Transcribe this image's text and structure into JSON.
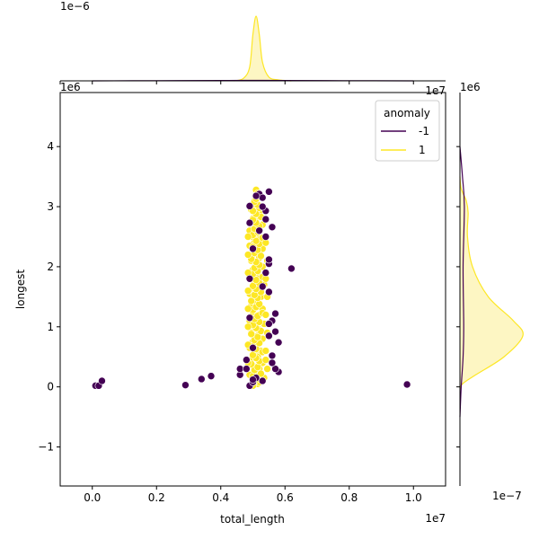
{
  "chart_data": {
    "type": "scatter",
    "xlabel": "total_length",
    "ylabel": "longest",
    "x_offset_label": "1e7",
    "y_offset_label": "1e6",
    "top_marginal_offset_label": "1e−6",
    "top_marginal_x_offset_label": "1e7",
    "right_marginal_offset_label": "1e6",
    "right_marginal_x_offset_label": "1e−7",
    "xlim": [
      -0.1,
      1.1
    ],
    "ylim": [
      -1.65,
      4.9
    ],
    "x_ticks": [
      0.0,
      0.2,
      0.4,
      0.6,
      0.8,
      1.0
    ],
    "x_tick_labels": [
      "0.0",
      "0.2",
      "0.4",
      "0.6",
      "0.8",
      "1.0"
    ],
    "y_ticks": [
      -1,
      0,
      1,
      2,
      3,
      4
    ],
    "y_tick_labels": [
      "−1",
      "0",
      "1",
      "2",
      "3",
      "4"
    ],
    "grid": false,
    "legend": {
      "title": "anomaly",
      "placement": "top-right",
      "entries": [
        {
          "label": "-1",
          "color": "#440154"
        },
        {
          "label": "1",
          "color": "#fde725"
        }
      ]
    },
    "colors": {
      "anomaly_neg": "#440154",
      "anomaly_pos": "#fde725",
      "kde_fill": "#fdf6c3"
    },
    "outliers": [
      [
        0.01,
        0.02
      ],
      [
        0.02,
        0.02
      ],
      [
        0.03,
        0.1
      ],
      [
        0.29,
        0.03
      ],
      [
        0.34,
        0.13
      ],
      [
        0.37,
        0.18
      ],
      [
        0.46,
        0.2
      ],
      [
        0.46,
        0.3
      ],
      [
        0.49,
        0.02
      ],
      [
        0.98,
        0.04
      ],
      [
        0.62,
        1.97
      ],
      [
        0.58,
        0.74
      ],
      [
        0.57,
        1.22
      ],
      [
        0.57,
        0.92
      ],
      [
        0.58,
        0.25
      ],
      [
        0.57,
        0.3
      ],
      [
        0.56,
        2.66
      ],
      [
        0.55,
        3.25
      ],
      [
        0.54,
        2.93
      ],
      [
        0.49,
        3.01
      ],
      [
        0.49,
        2.73
      ],
      [
        0.52,
        3.21
      ],
      [
        0.53,
        3.15
      ],
      [
        0.54,
        2.79
      ],
      [
        0.55,
        2.05
      ],
      [
        0.55,
        2.12
      ],
      [
        0.53,
        1.67
      ],
      [
        0.54,
        1.9
      ],
      [
        0.55,
        1.58
      ],
      [
        0.56,
        1.1
      ],
      [
        0.55,
        0.85
      ],
      [
        0.56,
        0.52
      ],
      [
        0.5,
        0.08
      ],
      [
        0.51,
        0.15
      ],
      [
        0.53,
        0.1
      ],
      [
        0.54,
        2.5
      ],
      [
        0.5,
        2.3
      ],
      [
        0.49,
        1.8
      ],
      [
        0.49,
        1.15
      ],
      [
        0.5,
        0.65
      ],
      [
        0.52,
        2.6
      ],
      [
        0.53,
        3.0
      ],
      [
        0.51,
        3.18
      ],
      [
        0.56,
        0.4
      ],
      [
        0.48,
        0.45
      ],
      [
        0.48,
        0.3
      ],
      [
        0.55,
        1.05
      ],
      [
        0.5,
        0.12
      ]
    ],
    "inliers": [
      [
        0.51,
        3.28
      ],
      [
        0.515,
        3.22
      ],
      [
        0.505,
        3.1
      ],
      [
        0.51,
        3.0
      ],
      [
        0.495,
        2.95
      ],
      [
        0.52,
        2.9
      ],
      [
        0.5,
        2.8
      ],
      [
        0.51,
        2.75
      ],
      [
        0.53,
        2.7
      ],
      [
        0.49,
        2.6
      ],
      [
        0.515,
        2.55
      ],
      [
        0.5,
        2.5
      ],
      [
        0.52,
        2.45
      ],
      [
        0.505,
        2.4
      ],
      [
        0.49,
        2.35
      ],
      [
        0.53,
        2.3
      ],
      [
        0.51,
        2.25
      ],
      [
        0.5,
        2.2
      ],
      [
        0.52,
        2.15
      ],
      [
        0.495,
        2.1
      ],
      [
        0.51,
        2.05
      ],
      [
        0.53,
        2.0
      ],
      [
        0.5,
        1.95
      ],
      [
        0.515,
        1.9
      ],
      [
        0.49,
        1.85
      ],
      [
        0.52,
        1.8
      ],
      [
        0.505,
        1.75
      ],
      [
        0.535,
        1.7
      ],
      [
        0.5,
        1.65
      ],
      [
        0.515,
        1.6
      ],
      [
        0.49,
        1.55
      ],
      [
        0.525,
        1.5
      ],
      [
        0.505,
        1.45
      ],
      [
        0.51,
        1.4
      ],
      [
        0.495,
        1.35
      ],
      [
        0.53,
        1.3
      ],
      [
        0.5,
        1.25
      ],
      [
        0.52,
        1.2
      ],
      [
        0.51,
        1.15
      ],
      [
        0.49,
        1.1
      ],
      [
        0.535,
        1.05
      ],
      [
        0.505,
        1.0
      ],
      [
        0.52,
        0.95
      ],
      [
        0.495,
        0.9
      ],
      [
        0.515,
        0.85
      ],
      [
        0.53,
        0.8
      ],
      [
        0.5,
        0.75
      ],
      [
        0.51,
        0.7
      ],
      [
        0.49,
        0.65
      ],
      [
        0.525,
        0.6
      ],
      [
        0.505,
        0.55
      ],
      [
        0.515,
        0.5
      ],
      [
        0.495,
        0.45
      ],
      [
        0.53,
        0.4
      ],
      [
        0.5,
        0.35
      ],
      [
        0.52,
        0.3
      ],
      [
        0.51,
        0.25
      ],
      [
        0.49,
        0.2
      ],
      [
        0.535,
        0.15
      ],
      [
        0.505,
        0.1
      ],
      [
        0.515,
        0.05
      ],
      [
        0.5,
        0.02
      ],
      [
        0.52,
        0.08
      ],
      [
        0.51,
        0.12
      ],
      [
        0.5,
        0.18
      ],
      [
        0.525,
        0.22
      ],
      [
        0.505,
        0.28
      ],
      [
        0.515,
        0.33
      ],
      [
        0.495,
        0.38
      ],
      [
        0.52,
        0.43
      ],
      [
        0.51,
        0.48
      ],
      [
        0.5,
        0.53
      ],
      [
        0.53,
        0.58
      ],
      [
        0.51,
        0.63
      ],
      [
        0.5,
        0.68
      ],
      [
        0.52,
        0.73
      ],
      [
        0.505,
        0.78
      ],
      [
        0.515,
        0.83
      ],
      [
        0.495,
        0.88
      ],
      [
        0.525,
        0.93
      ],
      [
        0.51,
        0.98
      ],
      [
        0.5,
        1.03
      ],
      [
        0.52,
        1.08
      ],
      [
        0.505,
        1.13
      ],
      [
        0.515,
        1.18
      ],
      [
        0.53,
        1.23
      ],
      [
        0.5,
        1.28
      ],
      [
        0.51,
        1.33
      ],
      [
        0.52,
        1.38
      ],
      [
        0.495,
        1.43
      ],
      [
        0.515,
        1.48
      ],
      [
        0.505,
        1.53
      ],
      [
        0.525,
        1.58
      ],
      [
        0.51,
        1.63
      ],
      [
        0.5,
        1.68
      ],
      [
        0.52,
        1.73
      ],
      [
        0.51,
        1.78
      ],
      [
        0.53,
        1.83
      ],
      [
        0.5,
        1.88
      ],
      [
        0.515,
        1.93
      ],
      [
        0.505,
        1.98
      ],
      [
        0.52,
        2.03
      ],
      [
        0.51,
        2.08
      ],
      [
        0.495,
        2.13
      ],
      [
        0.525,
        2.18
      ],
      [
        0.505,
        2.23
      ],
      [
        0.515,
        2.28
      ],
      [
        0.5,
        2.33
      ],
      [
        0.52,
        2.38
      ],
      [
        0.51,
        2.43
      ],
      [
        0.53,
        2.48
      ],
      [
        0.5,
        2.53
      ],
      [
        0.515,
        2.58
      ],
      [
        0.505,
        2.63
      ],
      [
        0.52,
        2.68
      ],
      [
        0.51,
        2.73
      ],
      [
        0.5,
        2.78
      ],
      [
        0.525,
        2.83
      ],
      [
        0.51,
        2.88
      ],
      [
        0.5,
        2.93
      ],
      [
        0.52,
        2.98
      ],
      [
        0.515,
        3.03
      ],
      [
        0.505,
        3.08
      ],
      [
        0.51,
        3.13
      ],
      [
        0.52,
        3.18
      ],
      [
        0.54,
        0.6
      ],
      [
        0.545,
        0.9
      ],
      [
        0.54,
        1.2
      ],
      [
        0.545,
        1.5
      ],
      [
        0.54,
        1.8
      ],
      [
        0.545,
        2.1
      ],
      [
        0.54,
        2.4
      ],
      [
        0.545,
        0.3
      ],
      [
        0.54,
        0.45
      ],
      [
        0.485,
        0.7
      ],
      [
        0.485,
        1.0
      ],
      [
        0.485,
        1.3
      ],
      [
        0.485,
        1.6
      ],
      [
        0.485,
        1.9
      ],
      [
        0.485,
        2.2
      ],
      [
        0.485,
        2.5
      ],
      [
        0.485,
        0.4
      ]
    ],
    "marginal_x_density": {
      "inlier_points": [
        [
          0.44,
          0
        ],
        [
          0.47,
          0.05
        ],
        [
          0.49,
          0.3
        ],
        [
          0.5,
          1.0
        ],
        [
          0.51,
          1.4
        ],
        [
          0.52,
          1.0
        ],
        [
          0.53,
          0.4
        ],
        [
          0.55,
          0.08
        ],
        [
          0.58,
          0.02
        ],
        [
          0.62,
          0
        ]
      ],
      "outlier_points": [
        [
          0.0,
          0
        ],
        [
          0.2,
          0.003
        ],
        [
          0.4,
          0.008
        ],
        [
          0.5,
          0.01
        ],
        [
          0.6,
          0.008
        ],
        [
          0.8,
          0.003
        ],
        [
          1.0,
          0
        ]
      ],
      "peak_scale": 1.4
    },
    "marginal_y_density": {
      "inlier_points": [
        [
          -0.05,
          0
        ],
        [
          0.05,
          0.04
        ],
        [
          0.2,
          0.25
        ],
        [
          0.5,
          0.7
        ],
        [
          0.85,
          1.0
        ],
        [
          1.1,
          0.85
        ],
        [
          1.5,
          0.45
        ],
        [
          2.0,
          0.2
        ],
        [
          2.5,
          0.12
        ],
        [
          2.9,
          0.13
        ],
        [
          3.1,
          0.1
        ],
        [
          3.3,
          0.02
        ],
        [
          3.5,
          0
        ]
      ],
      "outlier_points": [
        [
          -0.5,
          0
        ],
        [
          0.0,
          0.02
        ],
        [
          0.5,
          0.05
        ],
        [
          1.0,
          0.06
        ],
        [
          2.0,
          0.05
        ],
        [
          3.0,
          0.07
        ],
        [
          3.5,
          0.04
        ],
        [
          4.0,
          0
        ]
      ],
      "peak_scale": 1.0
    }
  }
}
